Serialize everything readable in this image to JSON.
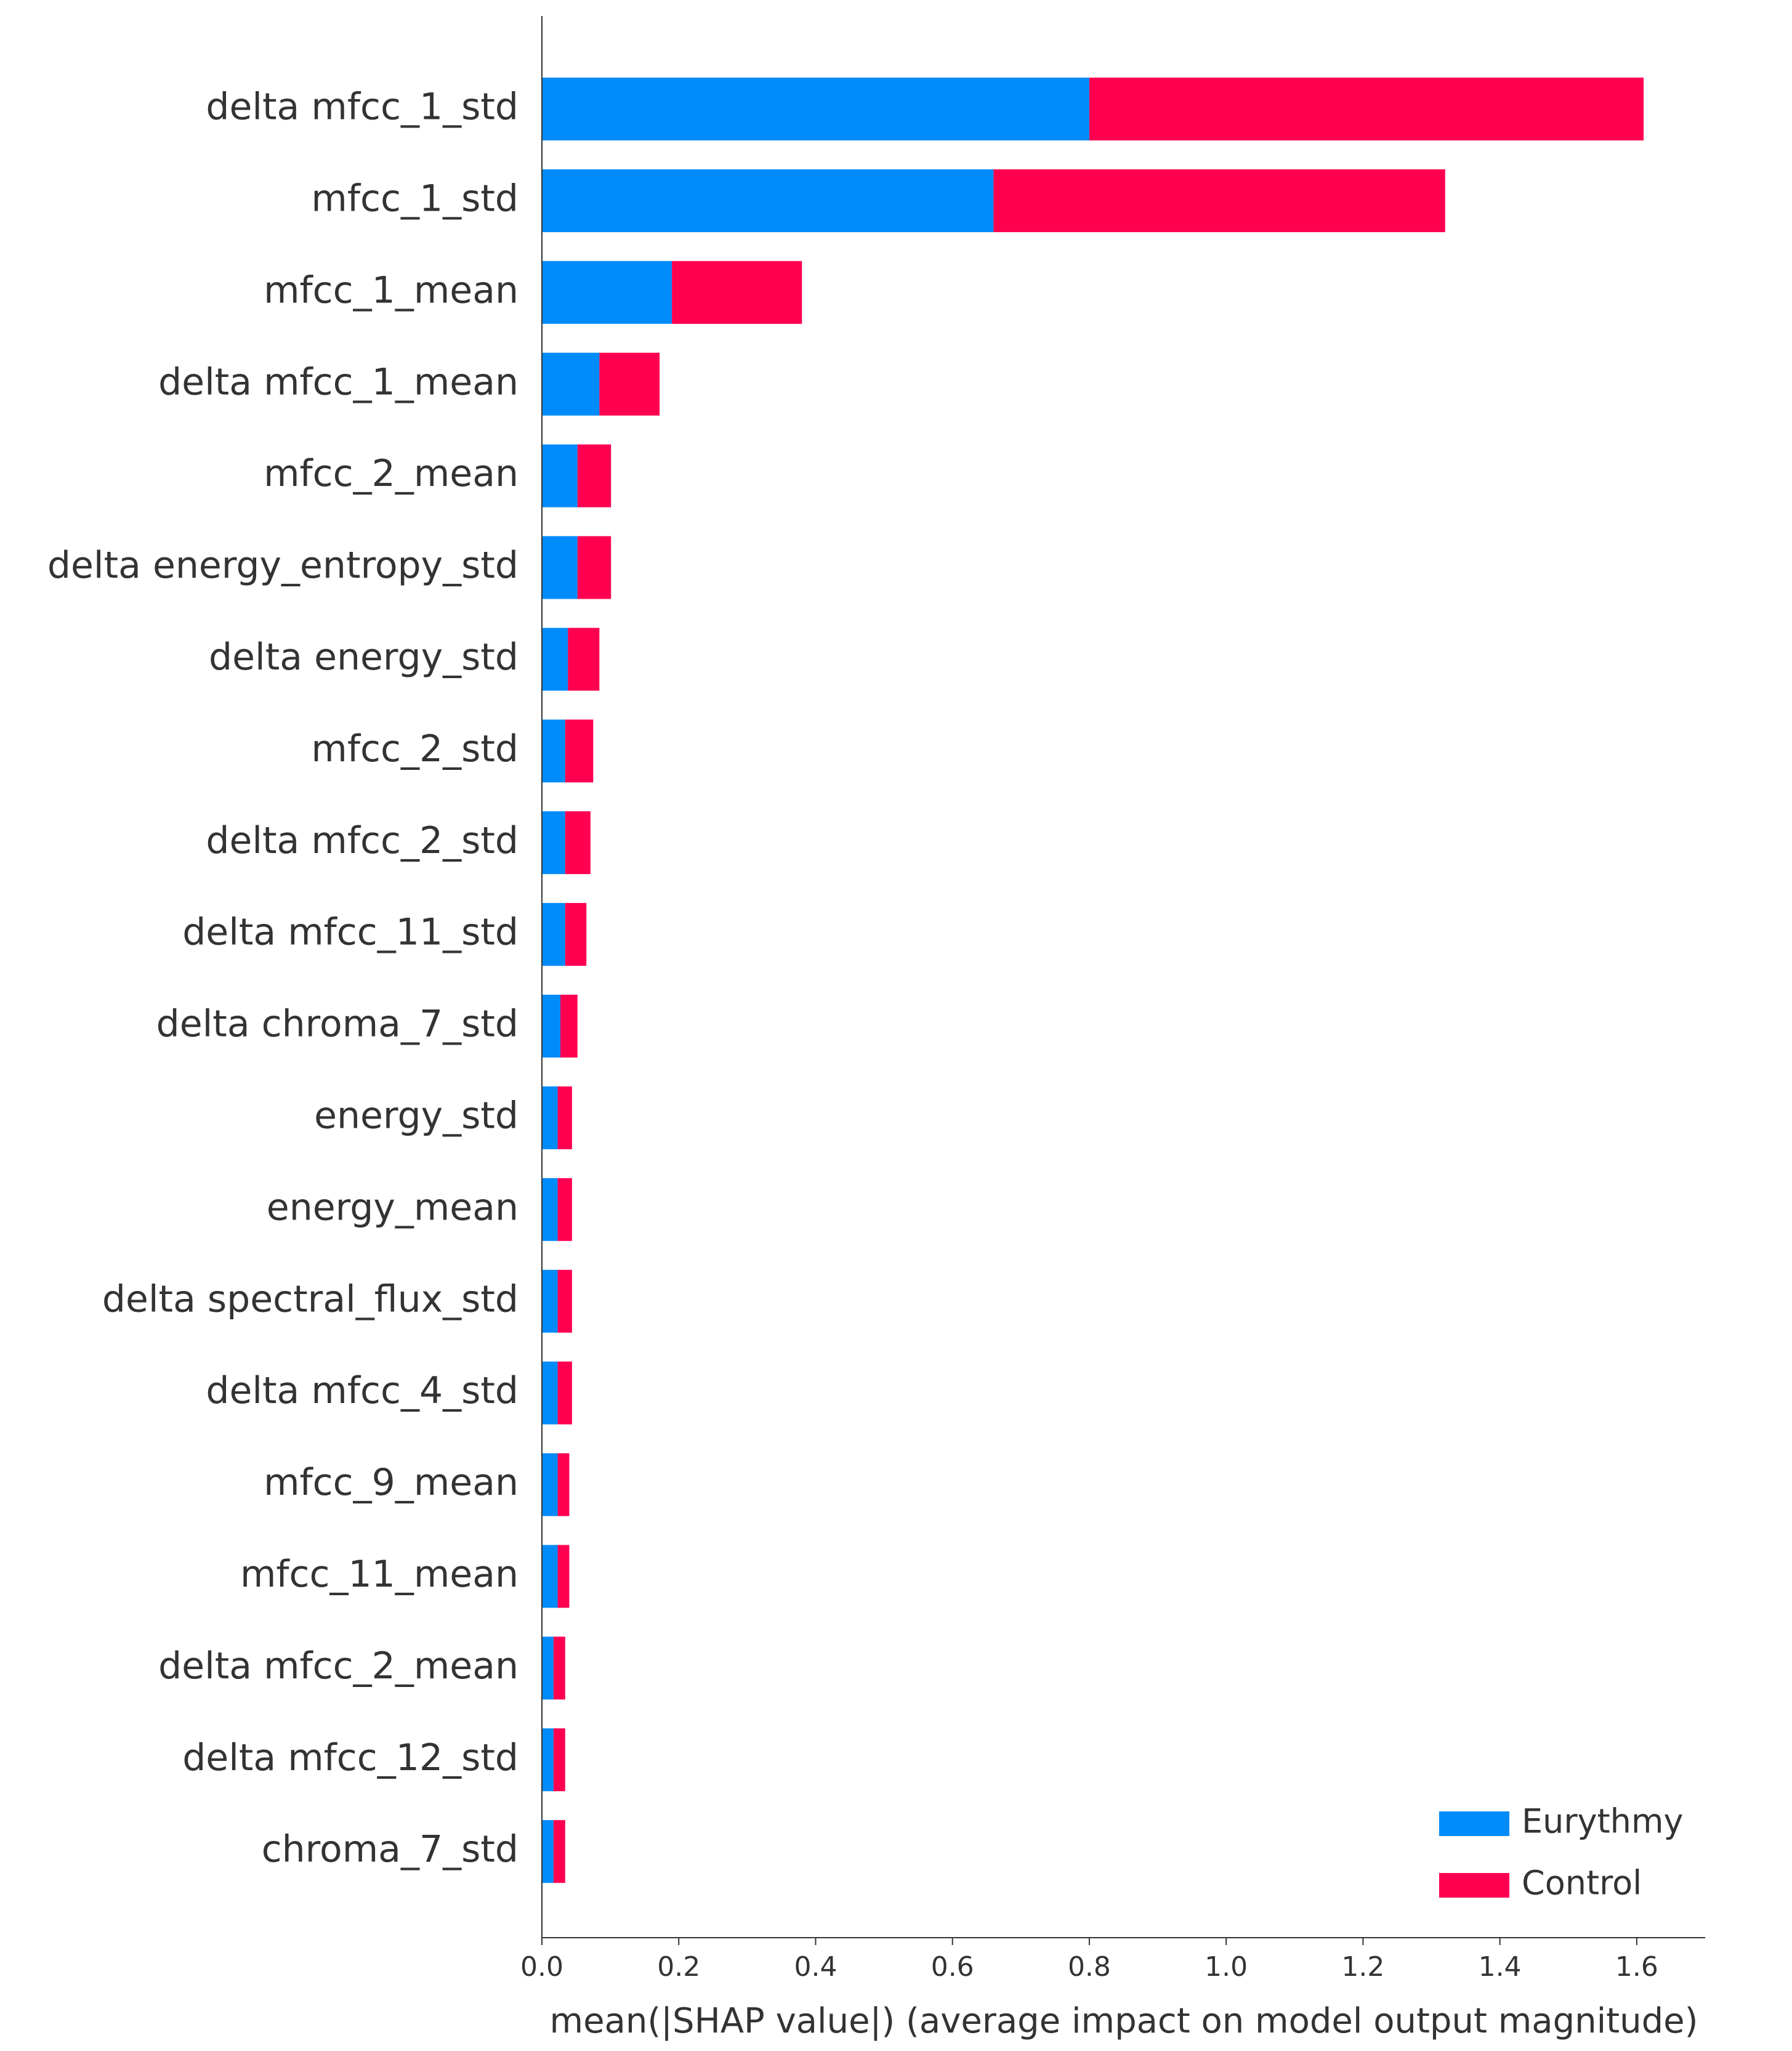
{
  "chart_data": {
    "type": "stacked_barh",
    "x_label": "mean(|SHAP value|) (average impact on model output magnitude)",
    "categories": [
      "delta mfcc_1_std",
      "mfcc_1_std",
      "mfcc_1_mean",
      "delta mfcc_1_mean",
      "mfcc_2_mean",
      "delta energy_entropy_std",
      "delta energy_std",
      "mfcc_2_std",
      "delta mfcc_2_std",
      "delta mfcc_11_std",
      "delta chroma_7_std",
      "energy_std",
      "energy_mean",
      "delta spectral_flux_std",
      "delta mfcc_4_std",
      "mfcc_9_mean",
      "mfcc_11_mean",
      "delta mfcc_2_mean",
      "delta mfcc_12_std",
      "chroma_7_std"
    ],
    "series": [
      {
        "name": "Eurythmy",
        "color": "#008bfb",
        "values": [
          0.8,
          0.66,
          0.19,
          0.084,
          0.052,
          0.052,
          0.038,
          0.034,
          0.034,
          0.034,
          0.027,
          0.023,
          0.023,
          0.023,
          0.023,
          0.023,
          0.023,
          0.017,
          0.017,
          0.017
        ]
      },
      {
        "name": "Control",
        "color": "#ff0051",
        "values": [
          0.81,
          0.66,
          0.19,
          0.088,
          0.049,
          0.049,
          0.046,
          0.041,
          0.037,
          0.031,
          0.025,
          0.021,
          0.021,
          0.021,
          0.021,
          0.017,
          0.017,
          0.017,
          0.017,
          0.017
        ]
      }
    ],
    "xlim": [
      0,
      1.7
    ],
    "xticks": [
      {
        "value": 0,
        "label": "0.0"
      },
      0.2,
      0.4,
      0.6,
      0.8,
      {
        "value": 1,
        "label": "1.0"
      },
      1.2,
      1.4,
      1.6
    ],
    "legend": "lower right"
  }
}
